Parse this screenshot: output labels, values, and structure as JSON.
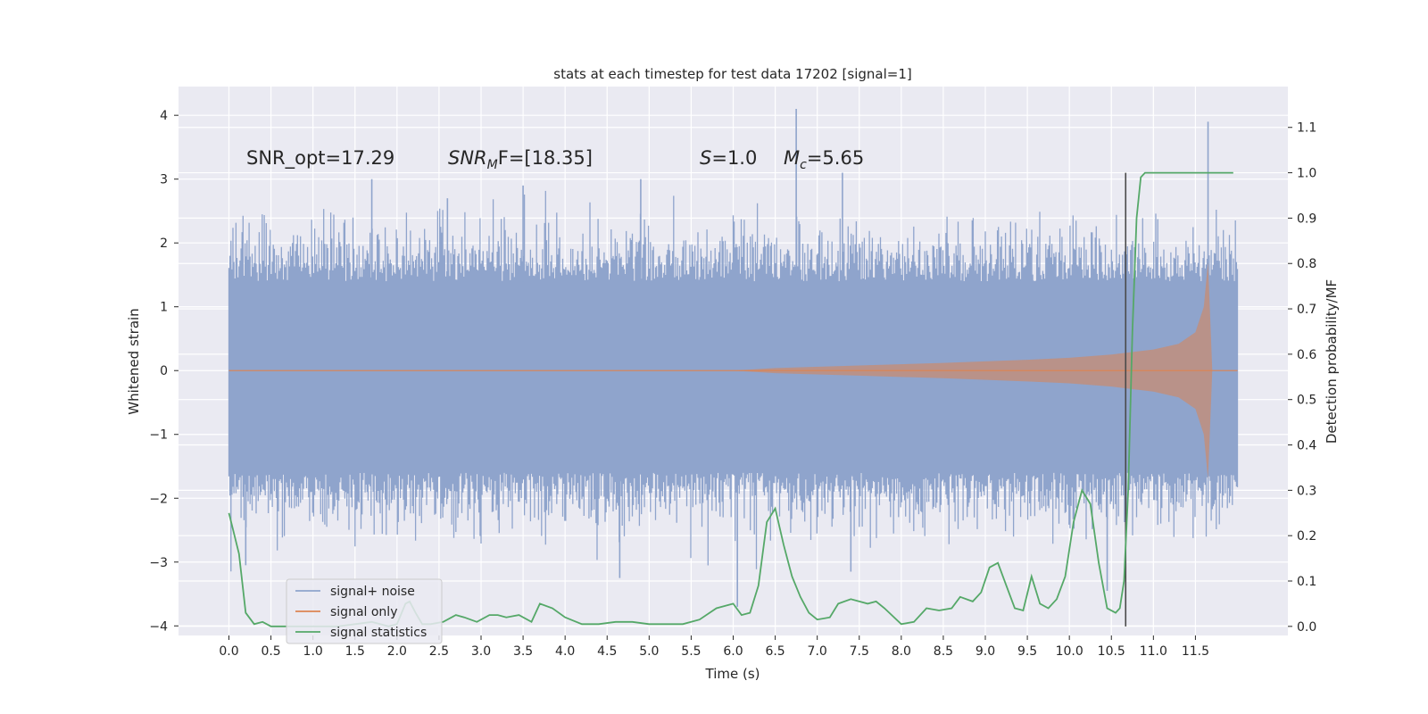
{
  "chart_data": {
    "type": "line",
    "title": "stats at each timestep for test data 17202 [signal=1]",
    "xlabel": "Time (s)",
    "ylabel_left": "Whitened strain",
    "ylabel_right": "Detection probability/MF",
    "xlim": [
      -0.6,
      12.6
    ],
    "ylim_left": [
      -4.15,
      4.45
    ],
    "ylim_right": [
      -0.02,
      1.19
    ],
    "x_ticks": [
      "0.0",
      "0.5",
      "1.0",
      "1.5",
      "2.0",
      "2.5",
      "3.0",
      "3.5",
      "4.0",
      "4.5",
      "5.0",
      "5.5",
      "6.0",
      "6.5",
      "7.0",
      "7.5",
      "8.0",
      "8.5",
      "9.0",
      "9.5",
      "10.0",
      "10.5",
      "11.0",
      "11.5"
    ],
    "y_left_ticks": [
      "4",
      "3",
      "2",
      "1",
      "0",
      "−1",
      "−2",
      "−3",
      "−4"
    ],
    "y_right_ticks": [
      "1.1",
      "1.0",
      "0.9",
      "0.8",
      "0.7",
      "0.6",
      "0.5",
      "0.4",
      "0.3",
      "0.2",
      "0.1",
      "0.0"
    ],
    "grid": true,
    "legend_position": "bottom-left",
    "annotations": {
      "snr_opt": "SNR_opt=17.29",
      "snr_mf_main": "SNR",
      "snr_mf_sub": "M",
      "snr_mf_rest": "F=[18.35]",
      "s_main": "S",
      "s_rest": "=1.0",
      "mc_main": "M",
      "mc_sub": "c",
      "mc_rest": "=5.65"
    },
    "vline_x": 10.67,
    "series": [
      {
        "name": "signal+ noise",
        "color": "#8fa4cc",
        "axis": "left",
        "style": "noise band",
        "x_range": [
          0.0,
          12.0
        ],
        "typical_envelope": [
          -1.6,
          1.4
        ],
        "peaks": [
          {
            "x": 1.7,
            "y": 3.0
          },
          {
            "x": 2.6,
            "y": 2.7
          },
          {
            "x": 3.5,
            "y": 2.9
          },
          {
            "x": 4.9,
            "y": 3.0
          },
          {
            "x": 6.75,
            "y": 4.1
          },
          {
            "x": 7.3,
            "y": 3.1
          },
          {
            "x": 11.65,
            "y": 3.9
          },
          {
            "x": 6.05,
            "y": -3.7
          },
          {
            "x": 4.65,
            "y": -3.25
          },
          {
            "x": 10.45,
            "y": -3.45
          },
          {
            "x": 0.2,
            "y": -3.05
          },
          {
            "x": 7.4,
            "y": -3.15
          }
        ]
      },
      {
        "name": "signal only",
        "color": "#dd8452",
        "axis": "left",
        "style": "chirp",
        "x": [
          0.0,
          6.0,
          6.5,
          7.5,
          8.5,
          9.5,
          10.0,
          10.5,
          11.0,
          11.3,
          11.5,
          11.6,
          11.65,
          11.7,
          12.0
        ],
        "envelope": [
          0.0,
          0.0,
          0.04,
          0.08,
          0.12,
          0.17,
          0.2,
          0.25,
          0.33,
          0.42,
          0.6,
          1.0,
          1.7,
          0.0,
          0.0
        ]
      },
      {
        "name": "signal statistics",
        "color": "#55a868",
        "axis": "right",
        "x": [
          0.0,
          0.12,
          0.2,
          0.3,
          0.4,
          0.5,
          0.7,
          1.0,
          1.3,
          1.5,
          1.7,
          1.9,
          2.0,
          2.1,
          2.15,
          2.22,
          2.3,
          2.4,
          2.55,
          2.7,
          2.8,
          2.95,
          3.1,
          3.2,
          3.3,
          3.45,
          3.6,
          3.7,
          3.85,
          4.0,
          4.2,
          4.4,
          4.6,
          4.8,
          5.0,
          5.2,
          5.4,
          5.6,
          5.8,
          6.0,
          6.1,
          6.2,
          6.3,
          6.4,
          6.5,
          6.6,
          6.7,
          6.8,
          6.9,
          7.0,
          7.15,
          7.25,
          7.4,
          7.6,
          7.7,
          7.8,
          8.0,
          8.15,
          8.3,
          8.45,
          8.6,
          8.7,
          8.85,
          8.95,
          9.05,
          9.15,
          9.25,
          9.35,
          9.45,
          9.55,
          9.65,
          9.75,
          9.85,
          9.95,
          10.05,
          10.15,
          10.25,
          10.35,
          10.45,
          10.55,
          10.6,
          10.65,
          10.7,
          10.75,
          10.8,
          10.85,
          10.9,
          11.0,
          11.5,
          11.95
        ],
        "y": [
          0.25,
          0.16,
          0.03,
          0.005,
          0.01,
          0.0,
          0.0,
          0.0,
          0.0,
          0.005,
          0.01,
          0.0,
          0.005,
          0.05,
          0.055,
          0.03,
          0.005,
          0.005,
          0.01,
          0.025,
          0.02,
          0.01,
          0.025,
          0.025,
          0.02,
          0.025,
          0.01,
          0.05,
          0.04,
          0.02,
          0.005,
          0.005,
          0.01,
          0.01,
          0.005,
          0.005,
          0.005,
          0.015,
          0.04,
          0.05,
          0.025,
          0.03,
          0.09,
          0.23,
          0.26,
          0.18,
          0.11,
          0.065,
          0.03,
          0.015,
          0.02,
          0.05,
          0.06,
          0.05,
          0.055,
          0.04,
          0.005,
          0.01,
          0.04,
          0.035,
          0.04,
          0.065,
          0.055,
          0.075,
          0.13,
          0.14,
          0.09,
          0.04,
          0.035,
          0.11,
          0.05,
          0.04,
          0.06,
          0.11,
          0.23,
          0.3,
          0.27,
          0.14,
          0.04,
          0.03,
          0.04,
          0.1,
          0.3,
          0.65,
          0.9,
          0.99,
          1.0,
          1.0,
          1.0,
          1.0
        ]
      }
    ]
  }
}
